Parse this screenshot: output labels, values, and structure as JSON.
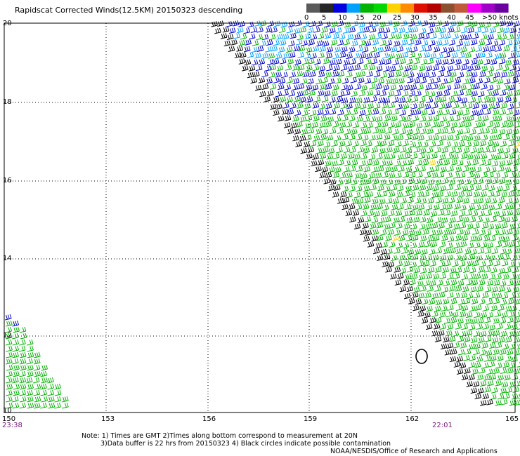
{
  "title": "Rapidscat Corrected Winds(12.5KM) 20150323 descending",
  "legend": {
    "unit_label": ">50 knots",
    "ticks": [
      "0",
      "5",
      "10",
      "15",
      "20",
      "25",
      "30",
      "35",
      "40",
      "45"
    ],
    "colors": [
      "#5a5a5a",
      "#262626",
      "#0000e0",
      "#00a0ff",
      "#00b400",
      "#00d800",
      "#ffd200",
      "#ff8c00",
      "#e01000",
      "#b40000",
      "#8a5030",
      "#bf5a3a",
      "#ff00ff",
      "#a000c8",
      "#6a00a0"
    ]
  },
  "axes": {
    "lat_labels": [
      "20",
      "18",
      "16",
      "14",
      "12",
      "10"
    ],
    "lon_labels": [
      "150",
      "153",
      "156",
      "159",
      "162",
      "165"
    ]
  },
  "times": {
    "left": "23:38",
    "right": "22:01"
  },
  "notes": {
    "line1": "Note: 1) Times are GMT 2)Times along bottom correspond to measurement at 20N",
    "line2": "3)Data buffer is 22 hrs from 20150323 4) Black circles indicate possible contamination",
    "line3": "NOAA/NESDIS/Office of Research and Applications"
  },
  "colors": {
    "wind_green": "#00b400",
    "wind_blue": "#0000c8",
    "wind_cyan": "#00a0ff",
    "wind_black": "#000000",
    "wind_yellow": "#ffd200"
  }
}
